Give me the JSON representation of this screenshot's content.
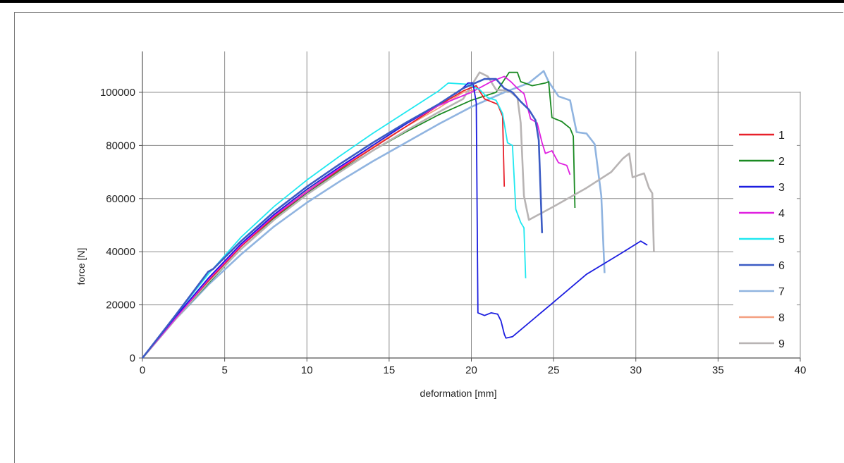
{
  "chart_data": {
    "type": "line",
    "title": "",
    "xlabel": "deformation [mm]",
    "ylabel": "force [N]",
    "xlim": [
      0,
      40
    ],
    "ylim": [
      0,
      110000
    ],
    "xticks": [
      0,
      5,
      10,
      15,
      20,
      25,
      30,
      35,
      40
    ],
    "yticks": [
      0,
      20000,
      40000,
      60000,
      80000,
      100000
    ],
    "ytick_labels": [
      "0",
      "20000",
      "40000",
      "60000",
      "80000",
      "100000"
    ],
    "grid": true,
    "legend": "right",
    "series": [
      {
        "name": "1",
        "color": "#e8202a",
        "points": [
          [
            0,
            0
          ],
          [
            2,
            15000
          ],
          [
            4,
            29000
          ],
          [
            6,
            42000
          ],
          [
            8,
            53000
          ],
          [
            10,
            62500
          ],
          [
            12,
            71000
          ],
          [
            14,
            79000
          ],
          [
            16,
            87000
          ],
          [
            18,
            95000
          ],
          [
            19.5,
            100500
          ],
          [
            20.3,
            102500
          ],
          [
            20.8,
            97500
          ],
          [
            21.2,
            96500
          ],
          [
            21.6,
            95500
          ],
          [
            21.9,
            91000
          ],
          [
            22.0,
            64500
          ]
        ]
      },
      {
        "name": "2",
        "color": "#1a8a22",
        "points": [
          [
            0,
            0
          ],
          [
            2,
            14500
          ],
          [
            4,
            28000
          ],
          [
            6,
            41000
          ],
          [
            8,
            52500
          ],
          [
            10,
            62000
          ],
          [
            12,
            70500
          ],
          [
            14,
            78000
          ],
          [
            16,
            85000
          ],
          [
            18,
            91500
          ],
          [
            20,
            97000
          ],
          [
            21.5,
            100000
          ],
          [
            22.3,
            107500
          ],
          [
            22.8,
            107500
          ],
          [
            23.0,
            104000
          ],
          [
            23.7,
            102500
          ],
          [
            24.5,
            103500
          ],
          [
            24.7,
            104000
          ],
          [
            24.9,
            90500
          ],
          [
            25.5,
            89000
          ],
          [
            26.0,
            86500
          ],
          [
            26.2,
            83500
          ],
          [
            26.3,
            56500
          ]
        ]
      },
      {
        "name": "3",
        "color": "#1c1ee0",
        "points": [
          [
            0,
            0
          ],
          [
            2,
            15500
          ],
          [
            4,
            30000
          ],
          [
            6,
            43000
          ],
          [
            8,
            54000
          ],
          [
            10,
            63500
          ],
          [
            12,
            72000
          ],
          [
            14,
            80000
          ],
          [
            16,
            88000
          ],
          [
            18,
            95500
          ],
          [
            19.3,
            100500
          ],
          [
            19.8,
            103500
          ],
          [
            20.1,
            103500
          ],
          [
            20.3,
            96000
          ],
          [
            20.4,
            17000
          ],
          [
            20.8,
            16000
          ],
          [
            21.2,
            17000
          ],
          [
            21.6,
            16500
          ],
          [
            21.8,
            14000
          ],
          [
            22.0,
            9000
          ],
          [
            22.1,
            7500
          ],
          [
            22.5,
            8000
          ],
          [
            25,
            21000
          ],
          [
            27,
            31500
          ],
          [
            29,
            39000
          ],
          [
            30.3,
            44000
          ],
          [
            30.7,
            42500
          ]
        ]
      },
      {
        "name": "4",
        "color": "#e020e0",
        "points": [
          [
            0,
            0
          ],
          [
            2,
            14800
          ],
          [
            4,
            29500
          ],
          [
            6,
            42500
          ],
          [
            8,
            53500
          ],
          [
            10,
            62500
          ],
          [
            12,
            71500
          ],
          [
            14,
            80000
          ],
          [
            16,
            88000
          ],
          [
            18,
            95000
          ],
          [
            20,
            100000
          ],
          [
            21.2,
            104000
          ],
          [
            22.0,
            106000
          ],
          [
            22.4,
            104000
          ],
          [
            22.8,
            101500
          ],
          [
            23.2,
            99500
          ],
          [
            23.6,
            90000
          ],
          [
            24.0,
            88500
          ],
          [
            24.3,
            81000
          ],
          [
            24.5,
            77000
          ],
          [
            24.9,
            78000
          ],
          [
            25.3,
            73500
          ],
          [
            25.8,
            72500
          ],
          [
            26.0,
            69000
          ]
        ]
      },
      {
        "name": "5",
        "color": "#20e8f0",
        "points": [
          [
            0,
            0
          ],
          [
            2,
            16000
          ],
          [
            4,
            31500
          ],
          [
            6,
            45500
          ],
          [
            8,
            57000
          ],
          [
            10,
            67000
          ],
          [
            12,
            76000
          ],
          [
            14,
            84500
          ],
          [
            16,
            92500
          ],
          [
            18,
            100500
          ],
          [
            18.6,
            103500
          ],
          [
            19.8,
            103000
          ],
          [
            20.5,
            101000
          ],
          [
            21.0,
            98000
          ],
          [
            21.5,
            97000
          ],
          [
            21.9,
            92000
          ],
          [
            22.2,
            81000
          ],
          [
            22.5,
            80000
          ],
          [
            22.7,
            56000
          ],
          [
            23.0,
            51000
          ],
          [
            23.2,
            49000
          ],
          [
            23.3,
            30000
          ]
        ]
      },
      {
        "name": "6",
        "color": "#3b5bc4",
        "points": [
          [
            0,
            0
          ],
          [
            2,
            16000
          ],
          [
            4,
            32500
          ],
          [
            4.3,
            33500
          ],
          [
            6,
            44000
          ],
          [
            8,
            55000
          ],
          [
            10,
            64500
          ],
          [
            12,
            73000
          ],
          [
            14,
            81000
          ],
          [
            16,
            88500
          ],
          [
            18,
            95500
          ],
          [
            19.5,
            101500
          ],
          [
            20.8,
            105000
          ],
          [
            21.5,
            105000
          ],
          [
            22.0,
            101500
          ],
          [
            22.5,
            100000
          ],
          [
            23.0,
            96500
          ],
          [
            23.5,
            93500
          ],
          [
            23.9,
            89500
          ],
          [
            24.1,
            82000
          ],
          [
            24.3,
            47000
          ]
        ]
      },
      {
        "name": "7",
        "color": "#90b4e0",
        "points": [
          [
            0,
            0
          ],
          [
            2,
            14500
          ],
          [
            4,
            27500
          ],
          [
            6,
            39000
          ],
          [
            8,
            49500
          ],
          [
            10,
            58500
          ],
          [
            12,
            66500
          ],
          [
            14,
            74000
          ],
          [
            16,
            81000
          ],
          [
            18,
            88000
          ],
          [
            20,
            94500
          ],
          [
            22,
            100000
          ],
          [
            23.5,
            103500
          ],
          [
            24.4,
            108000
          ],
          [
            24.7,
            104000
          ],
          [
            25.3,
            98500
          ],
          [
            26.0,
            97000
          ],
          [
            26.4,
            85000
          ],
          [
            27.0,
            84500
          ],
          [
            27.5,
            80500
          ],
          [
            27.9,
            61000
          ],
          [
            28.1,
            32000
          ]
        ]
      },
      {
        "name": "8",
        "color": "#f4a080",
        "points": [
          [
            0,
            0
          ],
          [
            2,
            15000
          ],
          [
            4,
            29500
          ],
          [
            6,
            42500
          ],
          [
            8,
            53500
          ],
          [
            10,
            63000
          ],
          [
            12,
            71500
          ],
          [
            14,
            79500
          ],
          [
            16,
            87000
          ],
          [
            18,
            94000
          ],
          [
            19.5,
            100000
          ],
          [
            20.2,
            101000
          ]
        ]
      },
      {
        "name": "9",
        "color": "#b8b4b4",
        "points": [
          [
            0,
            0
          ],
          [
            2,
            14500
          ],
          [
            4,
            28500
          ],
          [
            6,
            41000
          ],
          [
            8,
            52000
          ],
          [
            10,
            61500
          ],
          [
            12,
            70000
          ],
          [
            14,
            78000
          ],
          [
            16,
            85500
          ],
          [
            18,
            92500
          ],
          [
            19.5,
            97500
          ],
          [
            20.5,
            107500
          ],
          [
            21.0,
            106000
          ],
          [
            21.5,
            101000
          ],
          [
            22.3,
            100500
          ],
          [
            22.8,
            98000
          ],
          [
            23.0,
            88500
          ],
          [
            23.2,
            61000
          ],
          [
            23.5,
            52000
          ],
          [
            25,
            57000
          ],
          [
            27,
            64000
          ],
          [
            28.5,
            70000
          ],
          [
            29.2,
            75000
          ],
          [
            29.6,
            77000
          ],
          [
            29.8,
            68000
          ],
          [
            30.5,
            69500
          ],
          [
            30.8,
            64000
          ],
          [
            31.0,
            62000
          ],
          [
            31.1,
            40000
          ]
        ]
      }
    ]
  }
}
